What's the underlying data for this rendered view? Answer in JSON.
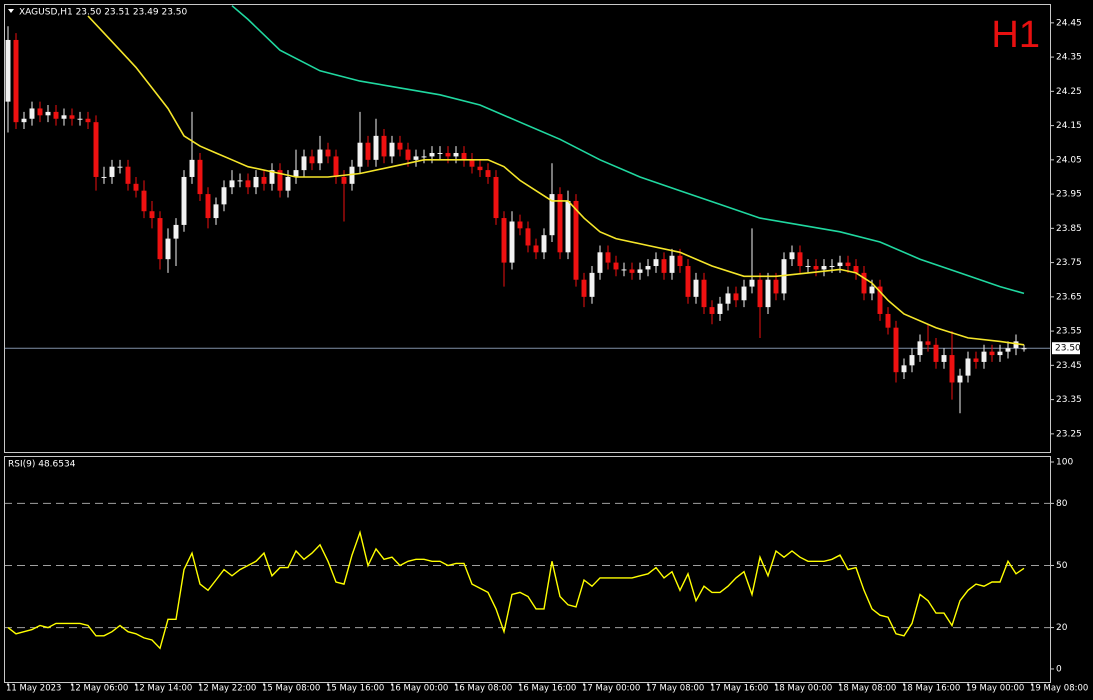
{
  "chart_data": [
    {
      "type": "candlestick",
      "title": "XAGUSD,H1 23.50 23.51 23.49 23.50",
      "annotation": "H1",
      "open": [
        24.22,
        24.4,
        24.16,
        24.17,
        24.2,
        24.18,
        24.19,
        24.17,
        24.18,
        24.17,
        24.17,
        24.16,
        24.0,
        24.0,
        24.03,
        24.03,
        23.98,
        23.96,
        23.9,
        23.88,
        23.76,
        23.82,
        23.86,
        24.0,
        24.05,
        23.95,
        23.88,
        23.92,
        23.97,
        23.99,
        23.99,
        23.97,
        24.0,
        23.98,
        24.02,
        23.96,
        24.0,
        24.02,
        24.06,
        24.04,
        24.08,
        24.06,
        24.0,
        23.98,
        24.03,
        24.1,
        24.05,
        24.12,
        24.06,
        24.1,
        24.08,
        24.05,
        24.06,
        24.06,
        24.07,
        24.07,
        24.06,
        24.07,
        24.05,
        24.03,
        24.02,
        24.0,
        23.88,
        23.75,
        23.87,
        23.85,
        23.8,
        23.78,
        23.83,
        23.95,
        23.78,
        23.93,
        23.7,
        23.65,
        23.72,
        23.78,
        23.75,
        23.73,
        23.73,
        23.72,
        23.73,
        23.74,
        23.76,
        23.72,
        23.77,
        23.74,
        23.65,
        23.7,
        23.62,
        23.6,
        23.63,
        23.66,
        23.64,
        23.68,
        23.7,
        23.62,
        23.7,
        23.66,
        23.76,
        23.78,
        23.74,
        23.74,
        23.73,
        23.74,
        23.74,
        23.75,
        23.74,
        23.72,
        23.66,
        23.68,
        23.6,
        23.56,
        23.43,
        23.45,
        23.48,
        23.52,
        23.51,
        23.46,
        23.48,
        23.4,
        23.42,
        23.47,
        23.46,
        23.49,
        23.48,
        23.49,
        23.5,
        23.5
      ],
      "high": [
        24.44,
        24.42,
        24.19,
        24.22,
        24.22,
        24.21,
        24.21,
        24.2,
        24.2,
        24.19,
        24.19,
        24.18,
        24.03,
        24.05,
        24.05,
        24.05,
        24.0,
        23.99,
        23.93,
        23.9,
        23.85,
        23.88,
        24.02,
        24.19,
        24.07,
        23.97,
        23.94,
        23.99,
        24.02,
        24.01,
        24.01,
        24.02,
        24.02,
        24.04,
        24.04,
        24.02,
        24.08,
        24.08,
        24.08,
        24.12,
        24.1,
        24.08,
        24.02,
        24.05,
        24.19,
        24.12,
        24.17,
        24.14,
        24.12,
        24.12,
        24.1,
        24.08,
        24.08,
        24.09,
        24.09,
        24.09,
        24.09,
        24.09,
        24.07,
        24.05,
        24.04,
        24.02,
        23.9,
        23.9,
        23.89,
        23.87,
        23.82,
        23.85,
        24.04,
        23.97,
        23.96,
        23.95,
        23.72,
        23.74,
        23.8,
        23.8,
        23.77,
        23.75,
        23.75,
        23.75,
        23.76,
        23.78,
        23.78,
        23.79,
        23.79,
        23.76,
        23.72,
        23.72,
        23.64,
        23.65,
        23.68,
        23.68,
        23.7,
        23.85,
        23.72,
        23.72,
        23.72,
        23.78,
        23.8,
        23.8,
        23.76,
        23.76,
        23.76,
        23.76,
        23.77,
        23.77,
        23.76,
        23.74,
        23.7,
        23.7,
        23.62,
        23.58,
        23.47,
        23.5,
        23.54,
        23.57,
        23.53,
        23.5,
        23.55,
        23.44,
        23.49,
        23.49,
        23.51,
        23.51,
        23.51,
        23.52,
        23.54,
        23.51
      ],
      "low": [
        24.13,
        24.14,
        24.14,
        24.15,
        24.16,
        24.16,
        24.15,
        24.15,
        24.15,
        24.15,
        24.14,
        23.96,
        23.98,
        23.98,
        24.01,
        23.96,
        23.94,
        23.88,
        23.85,
        23.73,
        23.72,
        23.74,
        23.84,
        23.98,
        23.93,
        23.85,
        23.86,
        23.9,
        23.95,
        23.97,
        23.95,
        23.95,
        23.96,
        23.96,
        23.94,
        23.94,
        23.98,
        24.0,
        24.02,
        24.02,
        24.04,
        23.98,
        23.87,
        23.96,
        24.01,
        24.03,
        24.03,
        24.04,
        24.04,
        24.06,
        24.03,
        24.03,
        24.04,
        24.04,
        24.05,
        24.04,
        24.04,
        24.03,
        24.01,
        24.0,
        23.98,
        23.86,
        23.68,
        23.73,
        23.83,
        23.78,
        23.76,
        23.76,
        23.81,
        23.76,
        23.76,
        23.68,
        23.62,
        23.63,
        23.7,
        23.73,
        23.71,
        23.71,
        23.7,
        23.7,
        23.71,
        23.72,
        23.7,
        23.7,
        23.72,
        23.63,
        23.63,
        23.6,
        23.57,
        23.58,
        23.61,
        23.62,
        23.62,
        23.66,
        23.53,
        23.6,
        23.64,
        23.64,
        23.74,
        23.72,
        23.72,
        23.71,
        23.71,
        23.72,
        23.72,
        23.72,
        23.7,
        23.64,
        23.64,
        23.58,
        23.54,
        23.4,
        23.41,
        23.43,
        23.46,
        23.49,
        23.44,
        23.44,
        23.35,
        23.31,
        23.4,
        23.44,
        23.44,
        23.46,
        23.46,
        23.47,
        23.48,
        23.49
      ],
      "close": [
        24.4,
        24.16,
        24.17,
        24.2,
        24.18,
        24.19,
        24.17,
        24.18,
        24.17,
        24.17,
        24.16,
        24.0,
        24.0,
        24.03,
        24.03,
        23.98,
        23.96,
        23.9,
        23.88,
        23.76,
        23.82,
        23.86,
        24.0,
        24.05,
        23.95,
        23.88,
        23.92,
        23.97,
        23.99,
        23.99,
        23.97,
        24.0,
        23.98,
        24.02,
        23.96,
        24.0,
        24.02,
        24.06,
        24.04,
        24.08,
        24.06,
        24.0,
        23.98,
        24.03,
        24.1,
        24.05,
        24.12,
        24.06,
        24.1,
        24.08,
        24.05,
        24.06,
        24.06,
        24.07,
        24.07,
        24.06,
        24.07,
        24.05,
        24.03,
        24.02,
        24.0,
        23.88,
        23.75,
        23.87,
        23.85,
        23.8,
        23.78,
        23.83,
        23.95,
        23.78,
        23.93,
        23.7,
        23.65,
        23.72,
        23.78,
        23.75,
        23.73,
        23.73,
        23.72,
        23.73,
        23.74,
        23.76,
        23.72,
        23.77,
        23.74,
        23.65,
        23.7,
        23.62,
        23.6,
        23.63,
        23.66,
        23.64,
        23.68,
        23.7,
        23.62,
        23.7,
        23.66,
        23.76,
        23.78,
        23.74,
        23.74,
        23.73,
        23.74,
        23.74,
        23.75,
        23.74,
        23.72,
        23.66,
        23.68,
        23.6,
        23.56,
        23.43,
        23.45,
        23.48,
        23.52,
        23.51,
        23.46,
        23.48,
        23.4,
        23.42,
        23.47,
        23.46,
        23.49,
        23.48,
        23.49,
        23.5,
        23.52,
        23.5
      ],
      "up_color": "#f2f2f2",
      "down_color": "#ee1111",
      "series": [
        {
          "color": "#f5e62a",
          "x": [
            10,
            12,
            14,
            16,
            18,
            20,
            22,
            24,
            26,
            28,
            30,
            34,
            36,
            40,
            44,
            48,
            52,
            56,
            60,
            62,
            64,
            66,
            68,
            70,
            72,
            74,
            76,
            80,
            84,
            88,
            92,
            96,
            100,
            104,
            106,
            108,
            110,
            112,
            116,
            120,
            124,
            127
          ],
          "values": [
            24.47,
            24.42,
            24.37,
            24.32,
            24.26,
            24.2,
            24.12,
            24.09,
            24.07,
            24.05,
            24.03,
            24.01,
            24.0,
            24.0,
            24.01,
            24.03,
            24.05,
            24.05,
            24.05,
            24.03,
            23.99,
            23.96,
            23.93,
            23.93,
            23.88,
            23.84,
            23.82,
            23.8,
            23.78,
            23.74,
            23.71,
            23.71,
            23.72,
            23.73,
            23.72,
            23.69,
            23.64,
            23.6,
            23.56,
            23.53,
            23.52,
            23.51
          ]
        },
        {
          "color": "#20d8a0",
          "x": [
            28,
            30,
            34,
            39,
            44,
            49,
            54,
            59,
            64,
            69,
            74,
            79,
            84,
            89,
            94,
            99,
            104,
            109,
            114,
            119,
            124,
            127
          ],
          "values": [
            24.5,
            24.46,
            24.37,
            24.31,
            24.28,
            24.26,
            24.24,
            24.21,
            24.16,
            24.11,
            24.05,
            24.0,
            23.96,
            23.92,
            23.88,
            23.86,
            23.84,
            23.81,
            23.76,
            23.72,
            23.68,
            23.66
          ]
        }
      ],
      "current_price": {
        "value": 23.5,
        "label": "23.50"
      },
      "xlim": [
        -0.5,
        130.25
      ],
      "ylim": [
        23.197,
        24.505
      ],
      "yticks": [
        24.45,
        24.35,
        24.25,
        24.15,
        24.05,
        23.95,
        23.85,
        23.75,
        23.65,
        23.55,
        23.45,
        23.35,
        23.25
      ]
    },
    {
      "type": "line",
      "title": "RSI(9) 48.6534",
      "color": "#ffff00",
      "values": [
        20,
        17,
        18,
        19,
        21,
        20,
        22,
        22,
        22,
        22,
        21,
        16,
        16,
        18,
        21,
        18,
        17,
        15,
        14,
        10,
        24,
        24,
        48,
        56,
        41,
        38,
        43,
        48,
        45,
        48,
        50,
        52,
        56,
        45,
        49,
        49,
        57,
        53,
        56,
        60,
        52,
        42,
        41,
        55,
        66,
        50,
        58,
        53,
        54,
        50,
        52,
        53,
        53,
        52,
        52,
        50,
        51,
        51,
        41,
        39,
        37,
        29,
        18,
        36,
        37,
        35,
        29,
        29,
        52,
        35,
        31,
        30,
        43,
        40,
        44,
        44,
        44,
        44,
        44,
        45,
        46,
        49,
        44,
        47,
        38,
        46,
        33,
        40,
        37,
        37,
        40,
        44,
        47,
        36,
        54,
        45,
        57,
        54,
        57,
        54,
        52,
        52,
        52,
        53,
        55,
        48,
        49,
        38,
        29,
        26,
        25,
        17,
        16,
        22,
        36,
        33,
        27,
        27,
        21,
        33,
        38,
        41,
        40,
        42,
        42,
        52,
        46,
        48.6534
      ],
      "levels": [
        80,
        50,
        20
      ],
      "xlim": [
        -0.5,
        130.25
      ],
      "ylim": [
        -6.3,
        102.9
      ],
      "yticks": [
        100,
        80,
        50,
        20,
        0
      ],
      "xticks": [
        {
          "value": 0,
          "label": "11 May 2023"
        },
        {
          "value": 8,
          "label": "12 May 06:00"
        },
        {
          "value": 16,
          "label": "12 May 14:00"
        },
        {
          "value": 24,
          "label": "12 May 22:00"
        },
        {
          "value": 32,
          "label": "15 May 08:00"
        },
        {
          "value": 40,
          "label": "15 May 16:00"
        },
        {
          "value": 48,
          "label": "16 May 00:00"
        },
        {
          "value": 56,
          "label": "16 May 08:00"
        },
        {
          "value": 64,
          "label": "16 May 16:00"
        },
        {
          "value": 72,
          "label": "17 May 00:00"
        },
        {
          "value": 80,
          "label": "17 May 08:00"
        },
        {
          "value": 88,
          "label": "17 May 16:00"
        },
        {
          "value": 96,
          "label": "18 May 00:00"
        },
        {
          "value": 104,
          "label": "18 May 08:00"
        },
        {
          "value": 112,
          "label": "18 May 16:00"
        },
        {
          "value": 120,
          "label": "19 May 00:00"
        },
        {
          "value": 128,
          "label": "19 May 08:00"
        }
      ]
    }
  ]
}
